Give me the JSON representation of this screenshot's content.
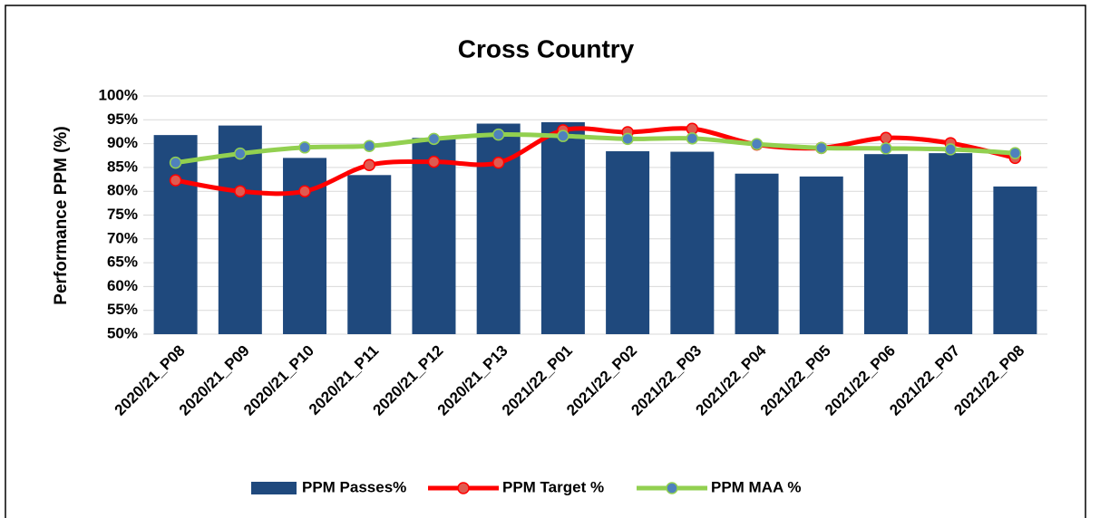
{
  "chart_data": {
    "type": "bar_line",
    "title": "Cross Country",
    "y_label": "Performance PPM (%)",
    "categories": [
      "2020/21_P08",
      "2020/21_P09",
      "2020/21_P10",
      "2020/21_P11",
      "2020/21_P12",
      "2020/21_P13",
      "2021/22_P01",
      "2021/22_P02",
      "2021/22_P03",
      "2021/22_P04",
      "2021/22_P05",
      "2021/22_P06",
      "2021/22_P07",
      "2021/22_P08"
    ],
    "series": [
      {
        "name": "PPM Passes%",
        "type": "bar",
        "color": "#1f497d",
        "values": [
          91.8,
          93.8,
          87,
          83.4,
          91.2,
          94.2,
          94.5,
          88.4,
          88.3,
          83.7,
          83.1,
          87.8,
          88,
          81
        ]
      },
      {
        "name": "PPM Target %",
        "type": "line",
        "color": "#ff0000",
        "marker_color": "#e05a50",
        "values": [
          82.3,
          80,
          80,
          85.5,
          86.2,
          86,
          92.8,
          92.4,
          93.1,
          89.8,
          89.1,
          91.2,
          90.1,
          87
        ]
      },
      {
        "name": "PPM MAA %",
        "type": "line",
        "color": "#92d050",
        "marker_color": "#4f81bd",
        "values": [
          86,
          87.9,
          89.2,
          89.5,
          91,
          91.9,
          91.6,
          91,
          91.1,
          89.9,
          89.1,
          89,
          88.8,
          88
        ]
      }
    ],
    "ylim": [
      50,
      100
    ],
    "yticks": [
      {
        "value": 50,
        "label": "50%"
      },
      {
        "value": 55,
        "label": "55%"
      },
      {
        "value": 60,
        "label": "60%"
      },
      {
        "value": 65,
        "label": "65%"
      },
      {
        "value": 70,
        "label": "70%"
      },
      {
        "value": 75,
        "label": "75%"
      },
      {
        "value": 80,
        "label": "80%"
      },
      {
        "value": 85,
        "label": "85%"
      },
      {
        "value": 90,
        "label": "90%"
      },
      {
        "value": 95,
        "label": "95%"
      },
      {
        "value": 100,
        "label": "100%"
      }
    ],
    "grid": true,
    "legend": "bottom"
  }
}
